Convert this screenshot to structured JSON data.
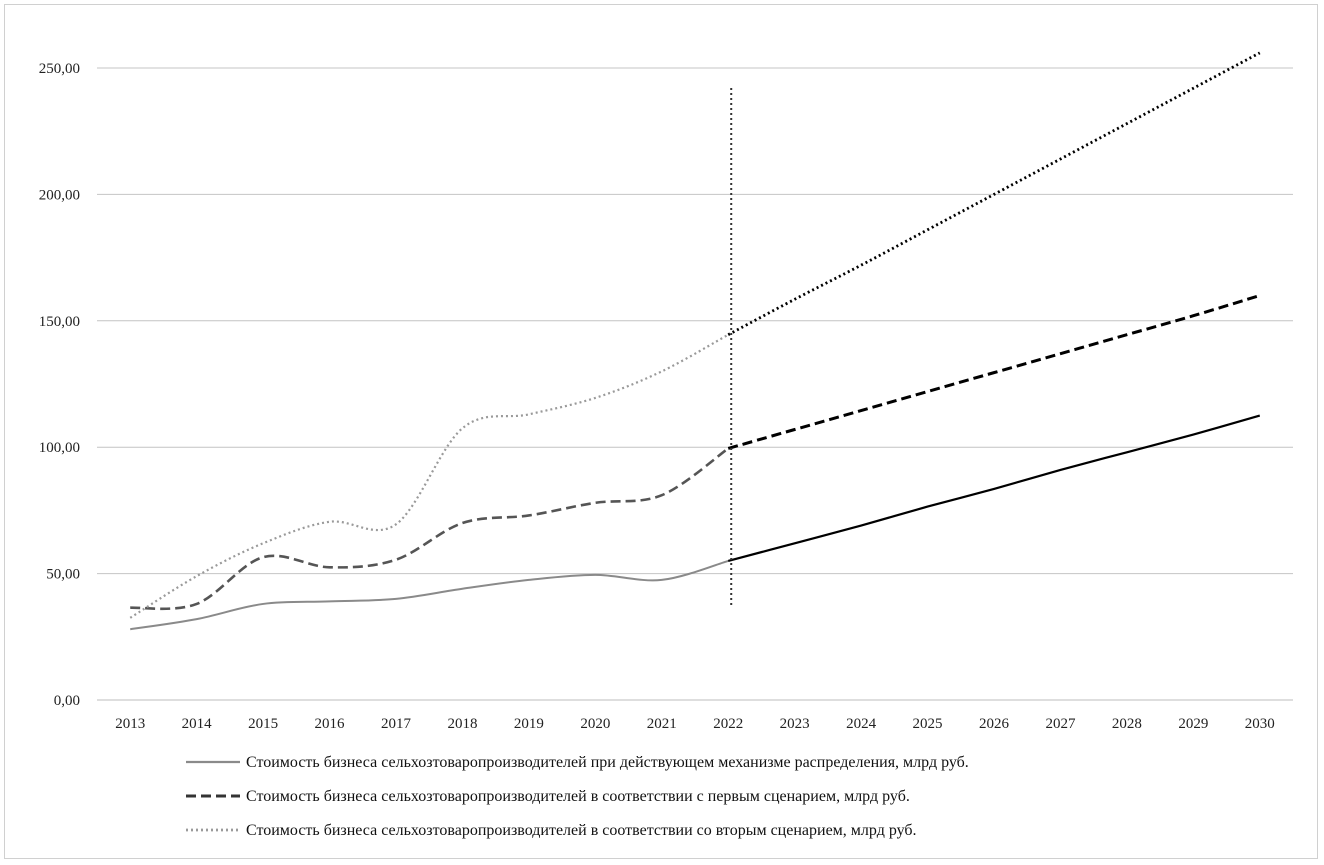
{
  "chart_data": {
    "type": "line",
    "title": "",
    "xlabel": "",
    "ylabel": "",
    "x": [
      2013,
      2014,
      2015,
      2016,
      2017,
      2018,
      2019,
      2020,
      2021,
      2022,
      2023,
      2024,
      2025,
      2026,
      2027,
      2028,
      2029,
      2030
    ],
    "ylim": [
      0,
      250
    ],
    "yticks": [
      "0,00",
      "50,00",
      "100,00",
      "150,00",
      "200,00",
      "250,00"
    ],
    "grid": true,
    "legend_position": "bottom",
    "reference_line_x": 2022,
    "series": [
      {
        "name": "Стоимость бизнеса сельхозтоваропроизводителей при действующем механизме распределения, млрд руб.",
        "values": [
          28,
          32,
          38,
          39,
          40,
          44,
          47.5,
          49.5,
          47.5,
          55,
          62,
          69,
          76.5,
          83.5,
          91,
          98,
          105,
          112.5
        ],
        "style": "solid",
        "colors": [
          "#8a8a8a",
          "#000000"
        ]
      },
      {
        "name": "Стоимость бизнеса сельхозтоваропроизводителей в соответствии с первым сценарием, млрд руб.",
        "values": [
          36.5,
          38,
          56.5,
          52.5,
          55.5,
          70,
          73,
          78,
          81,
          99.5,
          107,
          114.5,
          122,
          129.5,
          137,
          144.5,
          152,
          160
        ],
        "style": "dashed",
        "colors": [
          "#555555",
          "#000000"
        ]
      },
      {
        "name": "Стоимость бизнеса сельхозтоваропроизводителей в соответствии со вторым сценарием, млрд руб.",
        "values": [
          32.5,
          49,
          62,
          70.5,
          69.5,
          107.5,
          113,
          119.5,
          130,
          144.5,
          158.5,
          172,
          186,
          200,
          214,
          228,
          242,
          256
        ],
        "style": "dotted",
        "colors": [
          "#9a9a9a",
          "#000000"
        ]
      }
    ]
  }
}
